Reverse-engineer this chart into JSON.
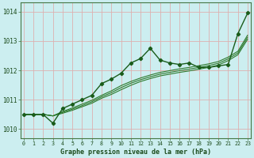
{
  "title": "Graphe pression niveau de la mer (hPa)",
  "background_color": "#cceef0",
  "plot_bg_color": "#cceef0",
  "grid_color": "#ddb0b0",
  "line_color_main": "#1a5c1a",
  "line_color_smooth": "#2d7a2d",
  "x_values": [
    0,
    1,
    2,
    3,
    4,
    5,
    6,
    7,
    8,
    9,
    10,
    11,
    12,
    13,
    14,
    15,
    16,
    17,
    18,
    19,
    20,
    21,
    22,
    23
  ],
  "y_main": [
    1010.5,
    1010.5,
    1010.5,
    1010.2,
    1010.7,
    1010.85,
    1011.0,
    1011.15,
    1011.55,
    1011.7,
    1011.9,
    1012.25,
    1012.4,
    1012.75,
    1012.35,
    1012.25,
    1012.2,
    1012.25,
    1012.1,
    1012.1,
    1012.15,
    1012.2,
    1013.25,
    1013.95
  ],
  "y_smooth_upper": [
    1010.5,
    1010.5,
    1010.5,
    1010.45,
    1010.6,
    1010.72,
    1010.85,
    1010.98,
    1011.15,
    1011.3,
    1011.48,
    1011.62,
    1011.74,
    1011.84,
    1011.93,
    1011.99,
    1012.05,
    1012.1,
    1012.16,
    1012.22,
    1012.3,
    1012.45,
    1012.65,
    1013.2
  ],
  "y_smooth_mid": [
    1010.5,
    1010.5,
    1010.5,
    1010.45,
    1010.57,
    1010.68,
    1010.8,
    1010.93,
    1011.1,
    1011.24,
    1011.41,
    1011.56,
    1011.68,
    1011.78,
    1011.87,
    1011.93,
    1011.99,
    1012.04,
    1012.1,
    1012.16,
    1012.24,
    1012.39,
    1012.59,
    1013.13
  ],
  "y_smooth_lower": [
    1010.5,
    1010.5,
    1010.5,
    1010.45,
    1010.54,
    1010.64,
    1010.76,
    1010.88,
    1011.05,
    1011.18,
    1011.34,
    1011.49,
    1011.62,
    1011.72,
    1011.81,
    1011.87,
    1011.93,
    1011.98,
    1012.04,
    1012.1,
    1012.18,
    1012.33,
    1012.53,
    1013.06
  ],
  "ylim": [
    1009.7,
    1014.3
  ],
  "xlim": [
    -0.3,
    23.3
  ],
  "yticks": [
    1010,
    1011,
    1012,
    1013,
    1014
  ],
  "xticks": [
    0,
    1,
    2,
    3,
    4,
    5,
    6,
    7,
    8,
    9,
    10,
    11,
    12,
    13,
    14,
    15,
    16,
    17,
    18,
    19,
    20,
    21,
    22,
    23
  ]
}
